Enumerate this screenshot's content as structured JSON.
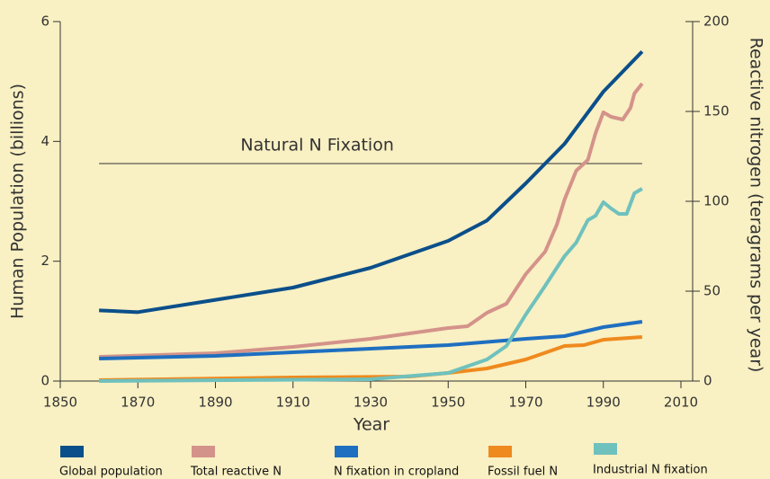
{
  "chart_data": {
    "type": "line",
    "xlabel": "Year",
    "ylabel": "Human Population (billions)",
    "y2label": "Reactive nitrogen (teragrams per year)",
    "xlim": [
      1850,
      2010
    ],
    "xticks": [
      1850,
      1870,
      1890,
      1910,
      1930,
      1950,
      1970,
      1990,
      2010
    ],
    "ylim": [
      0,
      6
    ],
    "yticks": [
      0,
      2,
      4,
      6
    ],
    "y2lim": [
      0,
      200
    ],
    "y2ticks": [
      0,
      50,
      100,
      150,
      200
    ],
    "annotation": {
      "text": "Natural N Fixation",
      "value": 121,
      "x": [
        1860,
        2000
      ]
    },
    "series": [
      {
        "name": "Global population",
        "color": "#0b4f8a",
        "x": [
          1860,
          1870,
          1910,
          1930,
          1950,
          1960,
          1970,
          1980,
          1990,
          2000
        ],
        "values": [
          1.18,
          1.15,
          1.56,
          1.89,
          2.34,
          2.68,
          3.3,
          3.96,
          4.83,
          5.5
        ]
      },
      {
        "name": "Total reactive N",
        "color": "#d4938a",
        "axis": "y2",
        "x": [
          1860,
          1890,
          1910,
          1930,
          1950,
          1955,
          1960,
          1965,
          1970,
          1975,
          1978,
          1980,
          1983,
          1986,
          1988,
          1990,
          1992,
          1995,
          1997,
          1998,
          2000
        ],
        "values": [
          13.5,
          15.5,
          19,
          23.5,
          29.5,
          30.5,
          38,
          43,
          59.5,
          72,
          87,
          101,
          117,
          123,
          138,
          149.5,
          147,
          145.5,
          152,
          160,
          165.5
        ]
      },
      {
        "name": "N fixation in cropland",
        "color": "#1f6fc0",
        "axis": "y2",
        "x": [
          1860,
          1890,
          1910,
          1930,
          1950,
          1970,
          1980,
          1990,
          2000
        ],
        "values": [
          12.5,
          14,
          16,
          18,
          20,
          23.5,
          25,
          30,
          33
        ]
      },
      {
        "name": "Fossil fuel N",
        "color": "#ef8a1e",
        "axis": "y2",
        "x": [
          1860,
          1910,
          1940,
          1950,
          1960,
          1970,
          1980,
          1985,
          1990,
          2000
        ],
        "values": [
          0.5,
          2,
          2.5,
          4.5,
          7,
          12,
          19.5,
          20,
          23,
          24.5
        ]
      },
      {
        "name": "Industrial N fixation",
        "color": "#6fc1bd",
        "axis": "y2",
        "x": [
          1860,
          1930,
          1950,
          1960,
          1965,
          1970,
          1975,
          1978,
          1980,
          1983,
          1986,
          1988,
          1990,
          1992,
          1994,
          1996,
          1998,
          2000
        ],
        "values": [
          0,
          1,
          4.5,
          12,
          19.5,
          37,
          53,
          63,
          69.5,
          77,
          89.5,
          92,
          99.5,
          96,
          93,
          93,
          104.5,
          107
        ]
      }
    ]
  }
}
